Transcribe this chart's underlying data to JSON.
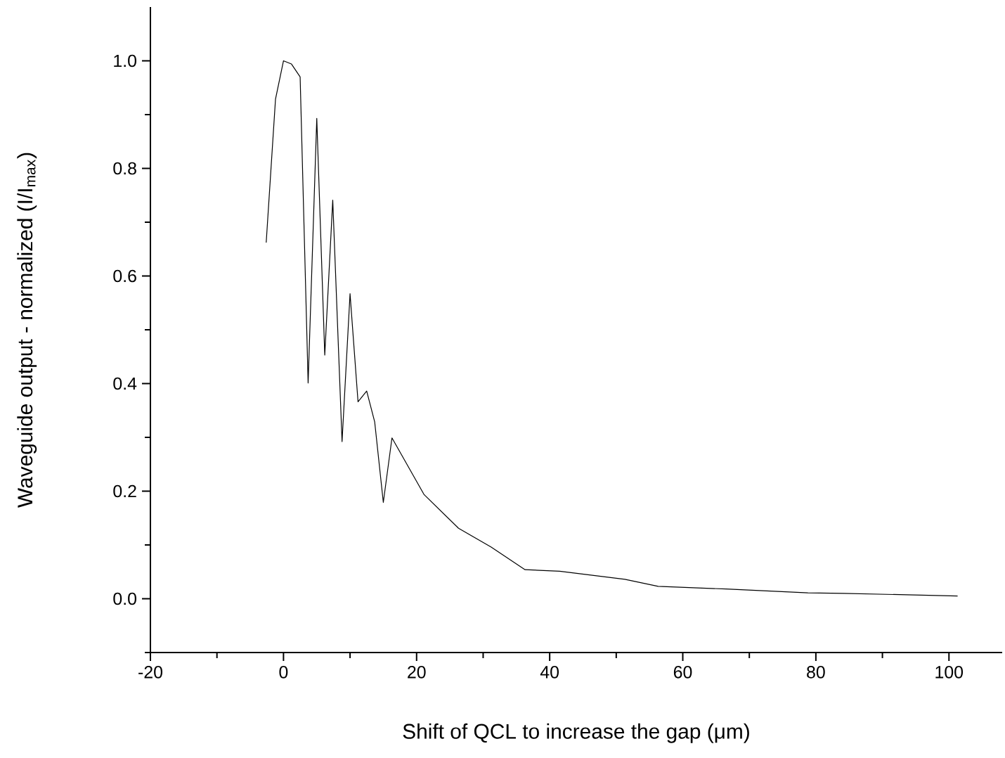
{
  "chart_data": {
    "type": "line",
    "xlabel": "Shift of QCL to increase the gap (μm)",
    "ylabel": "Waveguide output - normalized (I/I$_{max}$)",
    "xlim": [
      -20,
      108
    ],
    "ylim": [
      -0.1,
      1.1
    ],
    "xticks": [
      -20,
      {
        "value": -10,
        "label": null
      },
      0,
      {
        "value": 10,
        "label": null
      },
      20,
      {
        "value": 30,
        "label": null
      },
      40,
      {
        "value": 50,
        "label": null
      },
      60,
      {
        "value": 70,
        "label": null
      },
      80,
      {
        "value": 90,
        "label": null
      },
      100
    ],
    "yticks": [
      {
        "value": -0.1,
        "label": null
      },
      {
        "value": 0,
        "label": "0.0"
      },
      {
        "value": 0.1,
        "label": null
      },
      0.2,
      {
        "value": 0.3,
        "label": null
      },
      0.4,
      {
        "value": 0.5,
        "label": null
      },
      0.6,
      {
        "value": 0.7,
        "label": null
      },
      0.8,
      {
        "value": 0.9,
        "label": null
      },
      {
        "value": 1,
        "label": "1.0"
      }
    ],
    "series": [
      {
        "color": "#000000",
        "x": [
          -2.6,
          -1.2,
          0,
          1.2,
          2.5,
          3.7,
          5.0,
          6.2,
          7.4,
          8.8,
          10.0,
          11.2,
          12.5,
          13.7,
          15.0,
          16.3,
          21.1,
          26.3,
          31.2,
          36.3,
          41.5,
          51.3,
          56.3,
          66.5,
          78.8,
          84.1,
          101.3
        ],
        "values": [
          0.662,
          0.929,
          1.0,
          0.994,
          0.97,
          0.401,
          0.893,
          0.453,
          0.741,
          0.292,
          0.567,
          0.366,
          0.386,
          0.329,
          0.179,
          0.299,
          0.194,
          0.131,
          0.096,
          0.054,
          0.051,
          0.036,
          0.023,
          0.018,
          0.011,
          0.01,
          0.005
        ]
      }
    ],
    "marker": "none",
    "line_style": "solid"
  }
}
